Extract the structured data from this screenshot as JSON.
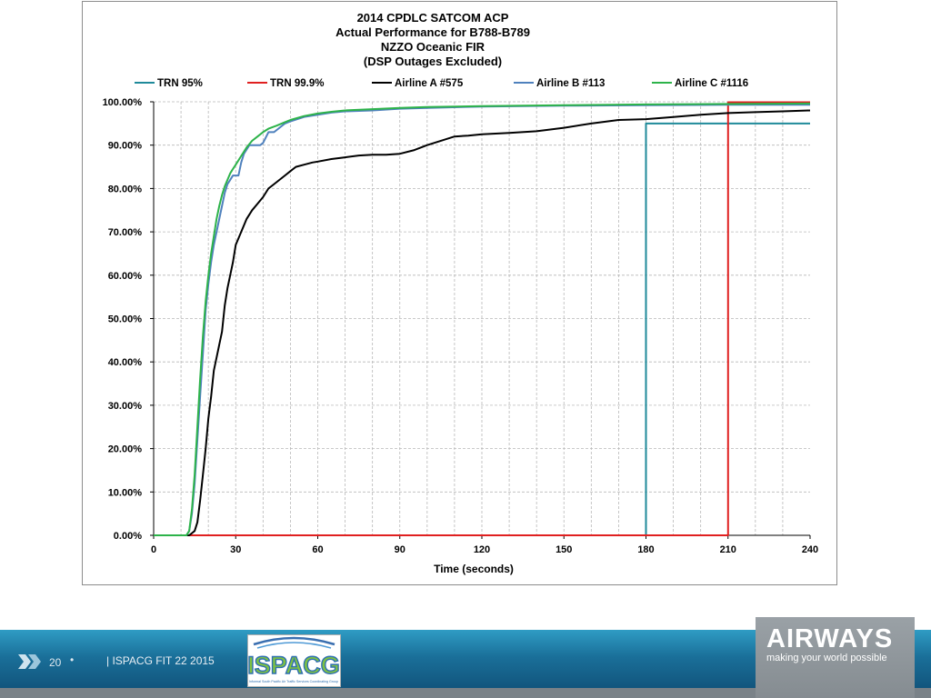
{
  "chart_data": {
    "type": "line",
    "title_lines": [
      "2014 CPDLC  SATCOM  ACP",
      "Actual Performance  for B788-B789",
      "NZZO Oceanic FIR",
      "(DSP Outages Excluded)"
    ],
    "xlabel": "Time (seconds)",
    "ylabel": "",
    "xlim": [
      0,
      240
    ],
    "ylim": [
      0,
      100
    ],
    "x_ticks": [
      0,
      30,
      60,
      90,
      120,
      150,
      180,
      210,
      240
    ],
    "x_tick_labels": [
      "0",
      "30",
      "60",
      "90",
      "120",
      "150",
      "180",
      "210",
      "240"
    ],
    "y_ticks": [
      0,
      10,
      20,
      30,
      40,
      50,
      60,
      70,
      80,
      90,
      100
    ],
    "y_tick_labels": [
      "0.00%",
      "10.00%",
      "20.00%",
      "30.00%",
      "40.00%",
      "50.00%",
      "60.00%",
      "70.00%",
      "80.00%",
      "90.00%",
      "100.00%"
    ],
    "grid": true,
    "legend_position": "top",
    "series": [
      {
        "name": "TRN 95%",
        "color": "#1f8a9a",
        "points": [
          [
            0,
            0
          ],
          [
            180,
            0
          ],
          [
            180,
            95
          ],
          [
            240,
            95
          ]
        ]
      },
      {
        "name": "TRN 99.9%",
        "color": "#e02020",
        "points": [
          [
            0,
            0
          ],
          [
            210,
            0
          ],
          [
            210,
            99.9
          ],
          [
            240,
            99.9
          ]
        ]
      },
      {
        "name": "Airline A #575",
        "color": "#000000",
        "points": [
          [
            0,
            0
          ],
          [
            13,
            0
          ],
          [
            14,
            0.5
          ],
          [
            15,
            1
          ],
          [
            16,
            3
          ],
          [
            17,
            8
          ],
          [
            18,
            14
          ],
          [
            19,
            20
          ],
          [
            20,
            27
          ],
          [
            21,
            32
          ],
          [
            22,
            38
          ],
          [
            23,
            41
          ],
          [
            24,
            44
          ],
          [
            25,
            47
          ],
          [
            26,
            53
          ],
          [
            27,
            57
          ],
          [
            28,
            60
          ],
          [
            29,
            63
          ],
          [
            30,
            67
          ],
          [
            32,
            70
          ],
          [
            34,
            73
          ],
          [
            36,
            75
          ],
          [
            38,
            76.5
          ],
          [
            40,
            78
          ],
          [
            42,
            80
          ],
          [
            44,
            81
          ],
          [
            46,
            82
          ],
          [
            48,
            83
          ],
          [
            50,
            84
          ],
          [
            52,
            85
          ],
          [
            55,
            85.5
          ],
          [
            58,
            86
          ],
          [
            60,
            86.2
          ],
          [
            65,
            86.8
          ],
          [
            70,
            87.2
          ],
          [
            75,
            87.6
          ],
          [
            80,
            87.8
          ],
          [
            85,
            87.8
          ],
          [
            90,
            88
          ],
          [
            95,
            88.8
          ],
          [
            100,
            90
          ],
          [
            105,
            91
          ],
          [
            110,
            92
          ],
          [
            115,
            92.2
          ],
          [
            120,
            92.5
          ],
          [
            130,
            92.8
          ],
          [
            140,
            93.2
          ],
          [
            150,
            94
          ],
          [
            160,
            95
          ],
          [
            170,
            95.8
          ],
          [
            180,
            96
          ],
          [
            190,
            96.5
          ],
          [
            200,
            97
          ],
          [
            210,
            97.4
          ],
          [
            220,
            97.6
          ],
          [
            230,
            97.8
          ],
          [
            240,
            98
          ]
        ]
      },
      {
        "name": "Airline B #113",
        "color": "#4f81bd",
        "points": [
          [
            0,
            0
          ],
          [
            12,
            0
          ],
          [
            13,
            1
          ],
          [
            14,
            5
          ],
          [
            15,
            12
          ],
          [
            16,
            22
          ],
          [
            17,
            32
          ],
          [
            18,
            42
          ],
          [
            19,
            52
          ],
          [
            20,
            58
          ],
          [
            21,
            63
          ],
          [
            22,
            67
          ],
          [
            23,
            70
          ],
          [
            24,
            73
          ],
          [
            25,
            76
          ],
          [
            26,
            79
          ],
          [
            27,
            81
          ],
          [
            28,
            82
          ],
          [
            29,
            83
          ],
          [
            30,
            83
          ],
          [
            31,
            83
          ],
          [
            32,
            86
          ],
          [
            33,
            88
          ],
          [
            34,
            89
          ],
          [
            35,
            90
          ],
          [
            37,
            90
          ],
          [
            39,
            90
          ],
          [
            40,
            90.5
          ],
          [
            42,
            93
          ],
          [
            44,
            93
          ],
          [
            46,
            94
          ],
          [
            48,
            95
          ],
          [
            50,
            95.5
          ],
          [
            55,
            96.5
          ],
          [
            60,
            97
          ],
          [
            65,
            97.5
          ],
          [
            70,
            97.8
          ],
          [
            80,
            98
          ],
          [
            90,
            98.4
          ],
          [
            100,
            98.6
          ],
          [
            120,
            98.9
          ],
          [
            150,
            99.1
          ],
          [
            180,
            99.2
          ],
          [
            210,
            99.3
          ],
          [
            240,
            99.3
          ]
        ]
      },
      {
        "name": "Airline C #1116",
        "color": "#2db34a",
        "points": [
          [
            0,
            0
          ],
          [
            12,
            0
          ],
          [
            13,
            1
          ],
          [
            14,
            6
          ],
          [
            15,
            14
          ],
          [
            16,
            25
          ],
          [
            17,
            36
          ],
          [
            18,
            46
          ],
          [
            19,
            54
          ],
          [
            20,
            60
          ],
          [
            21,
            65
          ],
          [
            22,
            69
          ],
          [
            23,
            73
          ],
          [
            24,
            76
          ],
          [
            25,
            78.5
          ],
          [
            26,
            80.5
          ],
          [
            27,
            82
          ],
          [
            28,
            83.5
          ],
          [
            29,
            84.5
          ],
          [
            30,
            85.5
          ],
          [
            32,
            87.5
          ],
          [
            34,
            89.5
          ],
          [
            36,
            91
          ],
          [
            38,
            92
          ],
          [
            40,
            93
          ],
          [
            42,
            93.8
          ],
          [
            45,
            94.5
          ],
          [
            48,
            95.3
          ],
          [
            50,
            95.8
          ],
          [
            55,
            96.7
          ],
          [
            60,
            97.3
          ],
          [
            65,
            97.7
          ],
          [
            70,
            98
          ],
          [
            80,
            98.3
          ],
          [
            90,
            98.6
          ],
          [
            100,
            98.8
          ],
          [
            120,
            99
          ],
          [
            150,
            99.2
          ],
          [
            180,
            99.4
          ],
          [
            210,
            99.5
          ],
          [
            240,
            99.6
          ]
        ]
      }
    ]
  },
  "footer": {
    "page_number": "20",
    "separator": "•",
    "caption": "| ISPACG FIT 22 2015",
    "partner_logo_text": "ISPACG",
    "partner_logo_subtext": "Informal South Pacific Air Traffic Services Coordinating Group",
    "brand_name": "AIRWAYS",
    "brand_tagline": "making your world possible"
  },
  "colors": {
    "footer_blue": "#1a6f99",
    "footer_gray": "#858c91",
    "grid": "#b8b8b8"
  }
}
